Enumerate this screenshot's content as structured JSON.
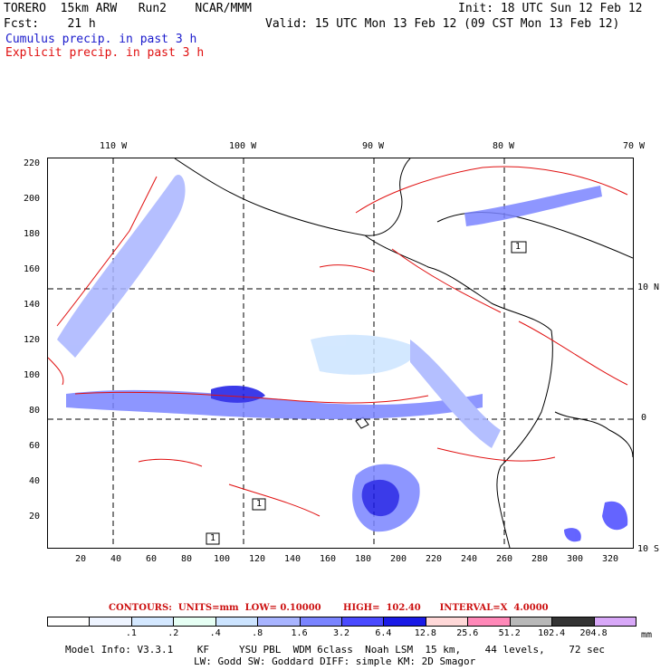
{
  "header": {
    "model_name": "TORERO  15km ARW   Run2    NCAR/MMM",
    "init": "Init: 18 UTC Sun 12 Feb 12",
    "fcst": "Fcst:    21 h",
    "valid": "Valid: 15 UTC Mon 13 Feb 12 (09 CST Mon 13 Feb 12)",
    "cumulus": "Cumulus precip. in past 3 h",
    "explicit": "Explicit precip. in past 3 h"
  },
  "map": {
    "lon_labels": [
      "110 W",
      "100 W",
      "90 W",
      "80 W",
      "70 W"
    ],
    "lat_labels": [
      "10 N",
      "0",
      "10 S"
    ],
    "x_ticks": [
      "20",
      "40",
      "60",
      "80",
      "100",
      "120",
      "140",
      "160",
      "180",
      "200",
      "220",
      "240",
      "260",
      "280",
      "300",
      "320"
    ],
    "y_ticks": [
      "220",
      "200",
      "180",
      "160",
      "140",
      "120",
      "100",
      "80",
      "60",
      "40",
      "20"
    ],
    "box_labels": [
      "1",
      "1",
      "1"
    ]
  },
  "colorbar": {
    "contours_text": "CONTOURS:  UNITS=mm  LOW= 0.10000       HIGH=  102.40      INTERVAL=X  4.0000",
    "levels": [
      ".1",
      ".2",
      ".4",
      ".8",
      "1.6",
      "3.2",
      "6.4",
      "12.8",
      "25.6",
      "51.2",
      "102.4",
      "204.8"
    ],
    "units": "mm",
    "colors": [
      "#ffffff",
      "#eef4ff",
      "#d4e8ff",
      "#e6fff4",
      "#cce4ff",
      "#a8b4ff",
      "#7a84ff",
      "#4a4aff",
      "#1a1ae6",
      "#ffd8d8",
      "#ff88b8",
      "#b8b8b8",
      "#333333",
      "#d8a8f8"
    ]
  },
  "model_info": {
    "line1": "Model Info: V3.3.1    KF     YSU PBL  WDM 6class  Noah LSM  15 km,    44 levels,    72 sec",
    "line2": "LW: Godd SW: Goddard DIFF: simple KM: 2D Smagor"
  }
}
